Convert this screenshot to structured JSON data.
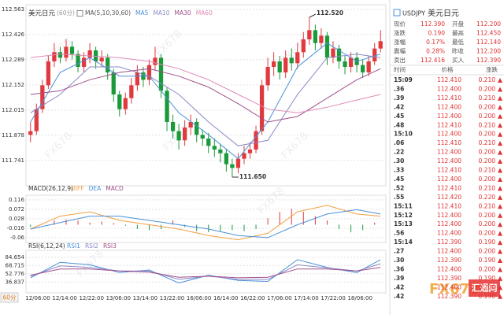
{
  "chart_data": [
    {
      "type": "candlestick",
      "title": "美元日元",
      "period": "(60分)",
      "ma_label": "MA(5,10,30,60)",
      "up_color": "#e0393e",
      "down_color": "#1a9a3a",
      "ylim": [
        111.62,
        112.58
      ],
      "yticks": [
        112.563,
        112.426,
        112.289,
        112.152,
        112.015,
        111.878,
        111.741
      ],
      "grid": true,
      "x_labels": [
        "12/06:00",
        "12/14:00",
        "12/22:00",
        "13/06:00",
        "13/14:00",
        "13/22:00",
        "16/06:00",
        "16/14:00",
        "16/22:00",
        "17/06:00",
        "17/14:00",
        "17/22:00",
        "18/06:00"
      ],
      "candles": [
        [
          111.88,
          111.95,
          111.84,
          111.9
        ],
        [
          111.9,
          112.05,
          111.88,
          112.02
        ],
        [
          112.02,
          112.18,
          112.0,
          112.15
        ],
        [
          112.15,
          112.31,
          112.13,
          112.28
        ],
        [
          112.28,
          112.38,
          112.25,
          112.33
        ],
        [
          112.33,
          112.36,
          112.27,
          112.3
        ],
        [
          112.3,
          112.4,
          112.28,
          112.36
        ],
        [
          112.36,
          112.39,
          112.29,
          112.32
        ],
        [
          112.32,
          112.34,
          112.22,
          112.25
        ],
        [
          112.25,
          112.33,
          112.22,
          112.3
        ],
        [
          112.3,
          112.38,
          112.27,
          112.34
        ],
        [
          112.34,
          112.36,
          112.24,
          112.28
        ],
        [
          112.28,
          112.34,
          112.25,
          112.3
        ],
        [
          112.3,
          112.32,
          112.18,
          112.22
        ],
        [
          112.22,
          112.24,
          112.06,
          112.1
        ],
        [
          112.1,
          112.12,
          111.98,
          112.02
        ],
        [
          112.02,
          112.11,
          111.99,
          112.08
        ],
        [
          112.08,
          112.19,
          112.05,
          112.15
        ],
        [
          112.15,
          112.26,
          112.12,
          112.22
        ],
        [
          112.22,
          112.25,
          112.14,
          112.18
        ],
        [
          112.18,
          112.29,
          112.15,
          112.26
        ],
        [
          112.26,
          112.36,
          112.23,
          112.3
        ],
        [
          112.3,
          112.32,
          112.08,
          112.12
        ],
        [
          112.12,
          112.14,
          111.9,
          111.95
        ],
        [
          111.95,
          111.99,
          111.86,
          111.9
        ],
        [
          111.9,
          111.94,
          111.8,
          111.85
        ],
        [
          111.85,
          111.96,
          111.82,
          111.92
        ],
        [
          111.92,
          111.99,
          111.88,
          111.95
        ],
        [
          111.95,
          111.97,
          111.84,
          111.88
        ],
        [
          111.88,
          111.91,
          111.82,
          111.86
        ],
        [
          111.86,
          111.89,
          111.78,
          111.82
        ],
        [
          111.82,
          111.86,
          111.76,
          111.8
        ],
        [
          111.8,
          111.83,
          111.73,
          111.78
        ],
        [
          111.78,
          111.8,
          111.68,
          111.72
        ],
        [
          111.72,
          111.75,
          111.65,
          111.7
        ],
        [
          111.7,
          111.78,
          111.67,
          111.75
        ],
        [
          111.75,
          111.82,
          111.72,
          111.78
        ],
        [
          111.78,
          111.84,
          111.75,
          111.8
        ],
        [
          111.8,
          111.93,
          111.78,
          111.9
        ],
        [
          111.9,
          112.18,
          111.88,
          112.15
        ],
        [
          112.15,
          112.3,
          112.12,
          112.25
        ],
        [
          112.25,
          112.33,
          112.2,
          112.28
        ],
        [
          112.28,
          112.31,
          112.18,
          112.22
        ],
        [
          112.22,
          112.34,
          112.19,
          112.3
        ],
        [
          112.3,
          112.35,
          112.23,
          112.27
        ],
        [
          112.27,
          112.38,
          112.24,
          112.33
        ],
        [
          112.33,
          112.44,
          112.3,
          112.4
        ],
        [
          112.4,
          112.52,
          112.37,
          112.45
        ],
        [
          112.45,
          112.48,
          112.34,
          112.38
        ],
        [
          112.38,
          112.46,
          112.35,
          112.42
        ],
        [
          112.42,
          112.44,
          112.26,
          112.3
        ],
        [
          112.3,
          112.39,
          112.27,
          112.35
        ],
        [
          112.35,
          112.37,
          112.24,
          112.28
        ],
        [
          112.28,
          112.31,
          112.21,
          112.25
        ],
        [
          112.25,
          112.33,
          112.22,
          112.3
        ],
        [
          112.3,
          112.33,
          112.22,
          112.26
        ],
        [
          112.26,
          112.29,
          112.19,
          112.22
        ],
        [
          112.22,
          112.31,
          112.2,
          112.28
        ],
        [
          112.28,
          112.38,
          112.26,
          112.35
        ],
        [
          112.35,
          112.45,
          112.33,
          112.39
        ]
      ],
      "annotations": [
        {
          "text": "112.520",
          "value": 112.52,
          "index": 47
        },
        {
          "text": "111.650",
          "value": 111.65,
          "index": 34
        }
      ],
      "series": [
        {
          "name": "MA5",
          "color": "#4a90d9",
          "x": [
            0,
            5,
            10,
            15,
            20,
            25,
            30,
            35,
            40,
            45,
            50,
            55,
            59
          ],
          "values": [
            111.95,
            112.22,
            112.3,
            112.2,
            112.2,
            112.0,
            111.88,
            111.75,
            111.95,
            112.25,
            112.38,
            112.28,
            112.32
          ]
        },
        {
          "name": "MA10",
          "color": "#8a8ac8",
          "x": [
            0,
            5,
            10,
            15,
            20,
            25,
            30,
            35,
            40,
            45,
            50,
            55,
            59
          ],
          "values": [
            112.0,
            112.1,
            112.25,
            112.25,
            112.2,
            112.1,
            111.95,
            111.82,
            111.85,
            112.1,
            112.3,
            112.32,
            112.3
          ]
        },
        {
          "name": "MA30",
          "color": "#a0508a",
          "x": [
            0,
            5,
            10,
            15,
            20,
            25,
            30,
            35,
            40,
            45,
            50,
            55,
            59
          ],
          "values": [
            112.1,
            112.12,
            112.18,
            112.22,
            112.24,
            112.2,
            112.14,
            112.05,
            111.95,
            111.98,
            112.08,
            112.18,
            112.24
          ]
        },
        {
          "name": "MA60",
          "color": "#e08ab8",
          "x": [
            0,
            5,
            10,
            15,
            20,
            25,
            30,
            35,
            40,
            45,
            50,
            55,
            59
          ],
          "values": [
            112.3,
            112.32,
            112.31,
            112.3,
            112.28,
            112.24,
            112.18,
            112.1,
            112.02,
            112.0,
            112.03,
            112.07,
            112.1
          ]
        }
      ]
    },
    {
      "type": "macd",
      "title": "MACD(26,12,9)",
      "ylim": [
        -0.075,
        0.13
      ],
      "yticks": [
        0.116,
        0.072,
        0.028,
        -0.016,
        -0.06
      ],
      "grid": true,
      "histogram": {
        "name": "MACD",
        "color": "#a0508a",
        "up_color": "#e0393e",
        "down_color": "#1a9a3a",
        "x": [
          0,
          2,
          4,
          6,
          8,
          10,
          12,
          14,
          16,
          18,
          20,
          22,
          24,
          26,
          28,
          30,
          32,
          34,
          36,
          38,
          40,
          42,
          44,
          46,
          48,
          50,
          52,
          54,
          56,
          58
        ],
        "values": [
          -0.01,
          0.005,
          0.02,
          0.025,
          0.02,
          0.01,
          0.015,
          0.008,
          -0.005,
          -0.02,
          -0.025,
          -0.02,
          0.02,
          -0.01,
          -0.03,
          -0.035,
          -0.03,
          -0.025,
          -0.03,
          -0.02,
          0.03,
          0.06,
          0.075,
          0.06,
          0.04,
          0.02,
          -0.02,
          -0.035,
          -0.025,
          0.01
        ]
      },
      "series": [
        {
          "name": "DIFF",
          "color": "#f0a040",
          "x": [
            0,
            5,
            10,
            15,
            20,
            25,
            30,
            35,
            40,
            45,
            50,
            55,
            59
          ],
          "values": [
            -0.02,
            0.04,
            0.06,
            0.02,
            0.0,
            -0.02,
            -0.05,
            -0.07,
            -0.04,
            0.06,
            0.09,
            0.05,
            0.04
          ]
        },
        {
          "name": "DEA",
          "color": "#4a90d9",
          "x": [
            0,
            5,
            10,
            15,
            20,
            25,
            30,
            35,
            40,
            45,
            50,
            55,
            59
          ],
          "values": [
            -0.02,
            0.01,
            0.04,
            0.04,
            0.02,
            0.0,
            -0.02,
            -0.05,
            -0.06,
            0.0,
            0.05,
            0.07,
            0.05
          ]
        }
      ]
    },
    {
      "type": "line",
      "title": "RSI(6,12,24)",
      "ylim": [
        19,
        95
      ],
      "yticks": [
        84.654,
        68.715,
        52.776,
        36.837
      ],
      "grid": true,
      "series": [
        {
          "name": "RSI1",
          "color": "#4a90d9",
          "x": [
            0,
            5,
            10,
            15,
            20,
            25,
            30,
            35,
            40,
            45,
            50,
            55,
            59
          ],
          "values": [
            45,
            75,
            70,
            55,
            60,
            35,
            50,
            40,
            38,
            80,
            65,
            55,
            80
          ]
        },
        {
          "name": "RSI2",
          "color": "#8a8ac8",
          "x": [
            0,
            5,
            10,
            15,
            20,
            25,
            30,
            35,
            40,
            45,
            50,
            55,
            59
          ],
          "values": [
            48,
            68,
            65,
            58,
            58,
            42,
            48,
            42,
            42,
            70,
            64,
            58,
            72
          ]
        },
        {
          "name": "RSI3",
          "color": "#a0508a",
          "x": [
            0,
            5,
            10,
            15,
            20,
            25,
            30,
            35,
            40,
            45,
            50,
            55,
            59
          ],
          "values": [
            50,
            62,
            62,
            58,
            56,
            46,
            48,
            45,
            46,
            62,
            62,
            58,
            65
          ]
        }
      ]
    }
  ],
  "period_button": "60分",
  "watermark": {
    "brand": "FX678",
    "name": "汇通网"
  },
  "quote": {
    "symbol": "USDJPY",
    "name": "美元日元",
    "rows": [
      [
        "现价",
        "112.390",
        "开盘",
        "112.200"
      ],
      [
        "涨跌",
        "0.190",
        "最高",
        "112.450"
      ],
      [
        "涨幅",
        "0.17%",
        "最低",
        "112.140"
      ],
      [
        "震幅",
        "0.28%",
        "昨收",
        "112.200"
      ],
      [
        "卖出",
        "112.416",
        "买入",
        "112.390"
      ]
    ]
  },
  "ticks": {
    "header": [
      "时间",
      "价格",
      "涨跌"
    ],
    "rows": [
      [
        "15:09",
        "112.410",
        "0.210"
      ],
      [
        ".36",
        "112.400",
        "0.200"
      ],
      [
        ".39",
        "112.410",
        "0.210"
      ],
      [
        ".42",
        "112.400",
        "0.200"
      ],
      [
        ".45",
        "112.400",
        "0.200"
      ],
      [
        ".48",
        "112.410",
        "0.210"
      ],
      [
        "15:10",
        "112.400",
        "0.200"
      ],
      [
        ".06",
        "112.410",
        "0.210"
      ],
      [
        ".22",
        "112.400",
        "0.200"
      ],
      [
        ".30",
        "112.400",
        "0.200"
      ],
      [
        ".33",
        "112.410",
        "0.210"
      ],
      [
        ".45",
        "112.400",
        "0.200"
      ],
      [
        ".52",
        "112.410",
        "0.210"
      ],
      [
        ".55",
        "112.420",
        "0.220"
      ],
      [
        "15:11",
        "112.410",
        "0.210"
      ],
      [
        "15:12",
        "112.400",
        "0.200"
      ],
      [
        "15:13",
        "112.400",
        "0.200"
      ],
      [
        ".56",
        "112.400",
        "0.200"
      ],
      [
        "15:14",
        "112.390",
        "0.190"
      ],
      [
        ".27",
        "112.400",
        "0.200"
      ],
      [
        ".30",
        "112.390",
        "0.190"
      ],
      [
        ".36",
        "112.400",
        "0.200"
      ],
      [
        ".39",
        "112.390",
        "0.190"
      ],
      [
        ".42",
        "112.400",
        "0.200"
      ],
      [
        ".42",
        "112.390",
        "0.190"
      ]
    ]
  }
}
